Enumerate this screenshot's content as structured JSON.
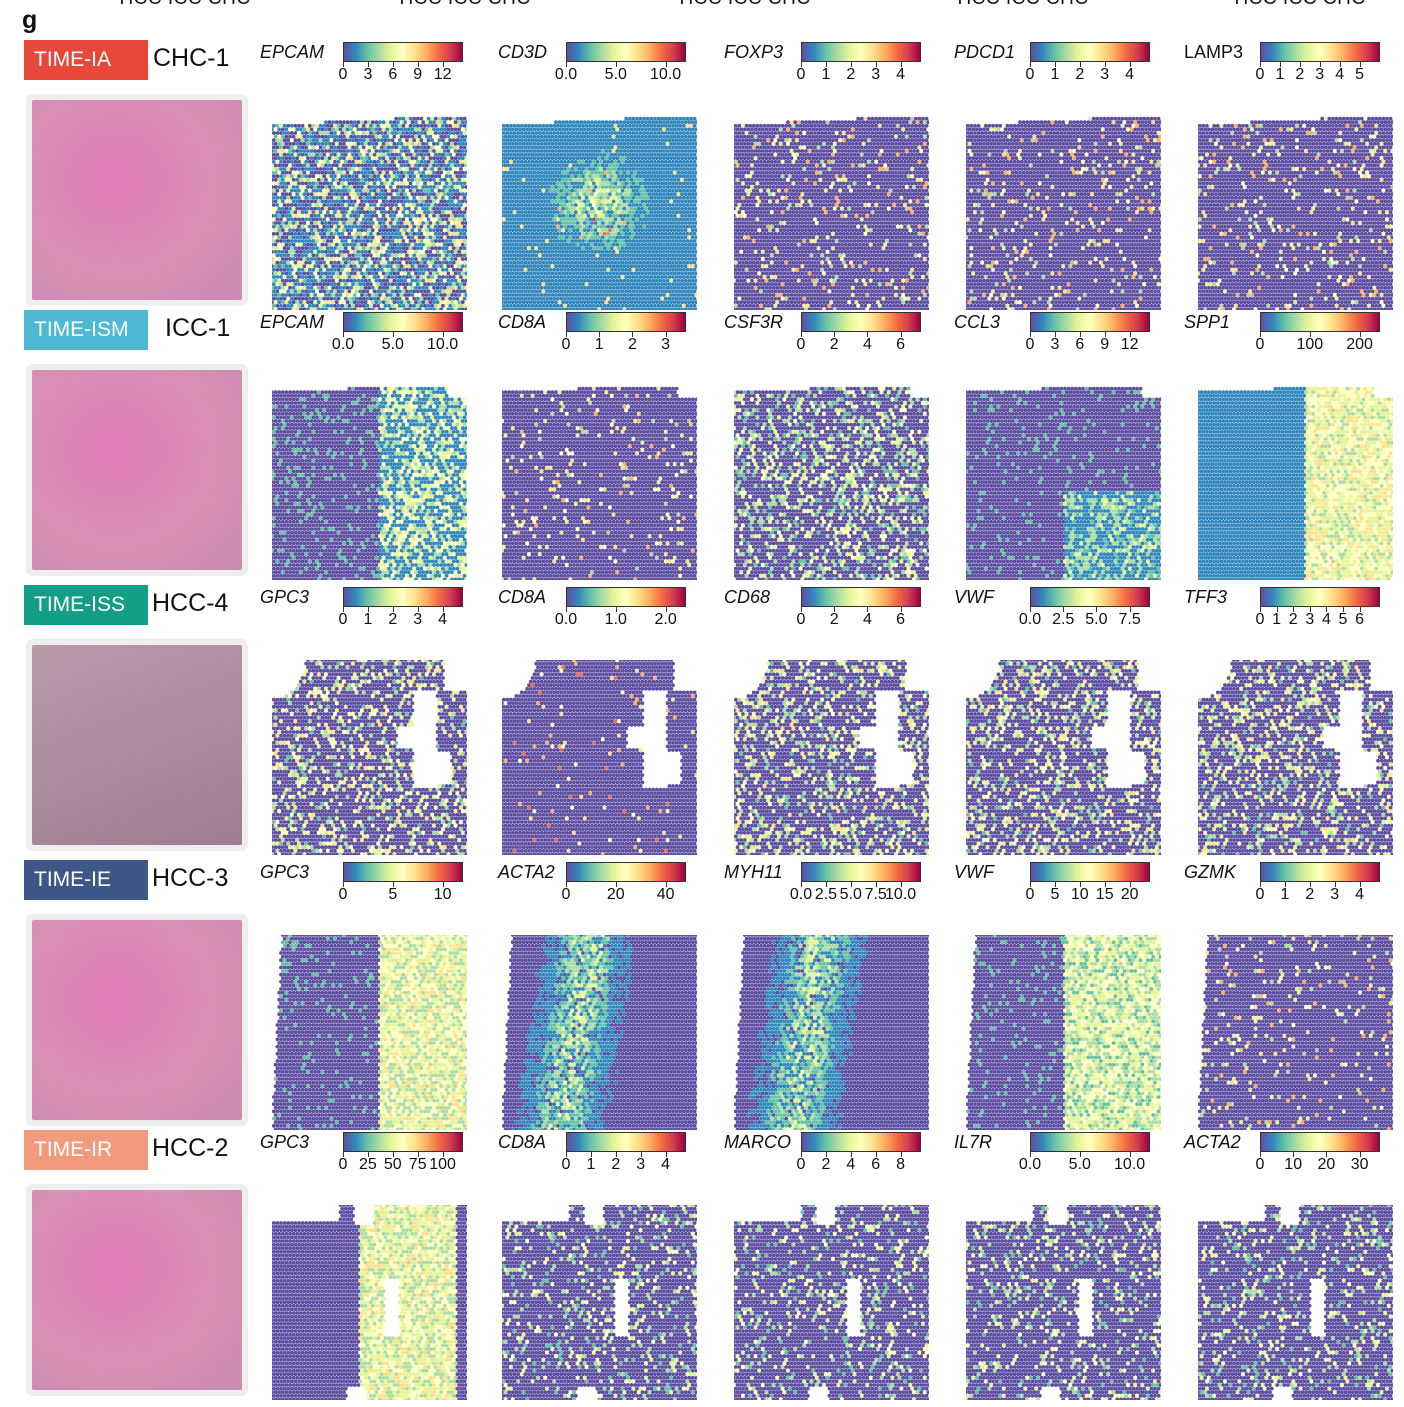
{
  "panel_letter": "g",
  "top_headers": [
    "HCC ICC CHC",
    "HCC ICC CHC",
    "HCC ICC CHC",
    "HCC ICC CHC",
    "HCC ICC CHC"
  ],
  "colors": {
    "time_ia": "#e8483a",
    "time_ism": "#4fb8d3",
    "time_iss": "#139e86",
    "time_ie": "#3e5788",
    "time_ir": "#f29a7e",
    "spectral": [
      "#5e4fa2",
      "#3288bd",
      "#66c2a5",
      "#abdda4",
      "#e6f598",
      "#ffffbf",
      "#fee08b",
      "#fdae61",
      "#f46d43",
      "#d53e4f",
      "#9e0142"
    ],
    "he_pink": "#d98fb6",
    "he_mauve": "#b58ba8"
  },
  "rows": [
    {
      "badge": "TIME-IA",
      "sample": "CHC-1",
      "genes": [
        {
          "name": "EPCAM",
          "ticks": [
            "0",
            "3",
            "6",
            "9",
            "12"
          ]
        },
        {
          "name": "CD3D",
          "ticks": [
            "0.0",
            "5.0",
            "10.0"
          ]
        },
        {
          "name": "FOXP3",
          "ticks": [
            "0",
            "1",
            "2",
            "3",
            "4"
          ]
        },
        {
          "name": "PDCD1",
          "ticks": [
            "0",
            "1",
            "2",
            "3",
            "4"
          ]
        },
        {
          "name": "LAMP3",
          "ticks": [
            "0",
            "1",
            "2",
            "3",
            "4",
            "5"
          ]
        }
      ]
    },
    {
      "badge": "TIME-ISM",
      "sample": "ICC-1",
      "genes": [
        {
          "name": "EPCAM",
          "ticks": [
            "0.0",
            "5.0",
            "10.0"
          ]
        },
        {
          "name": "CD8A",
          "ticks": [
            "0",
            "1",
            "2",
            "3"
          ]
        },
        {
          "name": "CSF3R",
          "ticks": [
            "0",
            "2",
            "4",
            "6"
          ]
        },
        {
          "name": "CCL3",
          "ticks": [
            "0",
            "3",
            "6",
            "9",
            "12"
          ]
        },
        {
          "name": "SPP1",
          "ticks": [
            "0",
            "100",
            "200"
          ]
        }
      ]
    },
    {
      "badge": "TIME-ISS",
      "sample": "HCC-4",
      "genes": [
        {
          "name": "GPC3",
          "ticks": [
            "0",
            "1",
            "2",
            "3",
            "4"
          ]
        },
        {
          "name": "CD8A",
          "ticks": [
            "0.0",
            "1.0",
            "2.0"
          ]
        },
        {
          "name": "CD68",
          "ticks": [
            "0",
            "2",
            "4",
            "6"
          ]
        },
        {
          "name": "VWF",
          "ticks": [
            "0.0",
            "2.5",
            "5.0",
            "7.5"
          ]
        },
        {
          "name": "TFF3",
          "ticks": [
            "0",
            "1",
            "2",
            "3",
            "4",
            "5",
            "6"
          ]
        }
      ]
    },
    {
      "badge": "TIME-IE",
      "sample": "HCC-3",
      "genes": [
        {
          "name": "GPC3",
          "ticks": [
            "0",
            "5",
            "10"
          ]
        },
        {
          "name": "ACTA2",
          "ticks": [
            "0",
            "20",
            "40"
          ]
        },
        {
          "name": "MYH11",
          "ticks": [
            "0.0",
            "2.5",
            "5.0",
            "7.5",
            "10.0"
          ]
        },
        {
          "name": "VWF",
          "ticks": [
            "0",
            "5",
            "10",
            "15",
            "20"
          ]
        },
        {
          "name": "GZMK",
          "ticks": [
            "0",
            "1",
            "2",
            "3",
            "4"
          ]
        }
      ]
    },
    {
      "badge": "TIME-IR",
      "sample": "HCC-2",
      "genes": [
        {
          "name": "GPC3",
          "ticks": [
            "0",
            "25",
            "50",
            "75",
            "100"
          ]
        },
        {
          "name": "CD8A",
          "ticks": [
            "0",
            "1",
            "2",
            "3",
            "4"
          ]
        },
        {
          "name": "MARCO",
          "ticks": [
            "0",
            "2",
            "4",
            "6",
            "8"
          ]
        },
        {
          "name": "IL7R",
          "ticks": [
            "0.0",
            "5.0",
            "10.0"
          ]
        },
        {
          "name": "ACTA2",
          "ticks": [
            "0",
            "10",
            "20",
            "30"
          ]
        }
      ]
    }
  ]
}
